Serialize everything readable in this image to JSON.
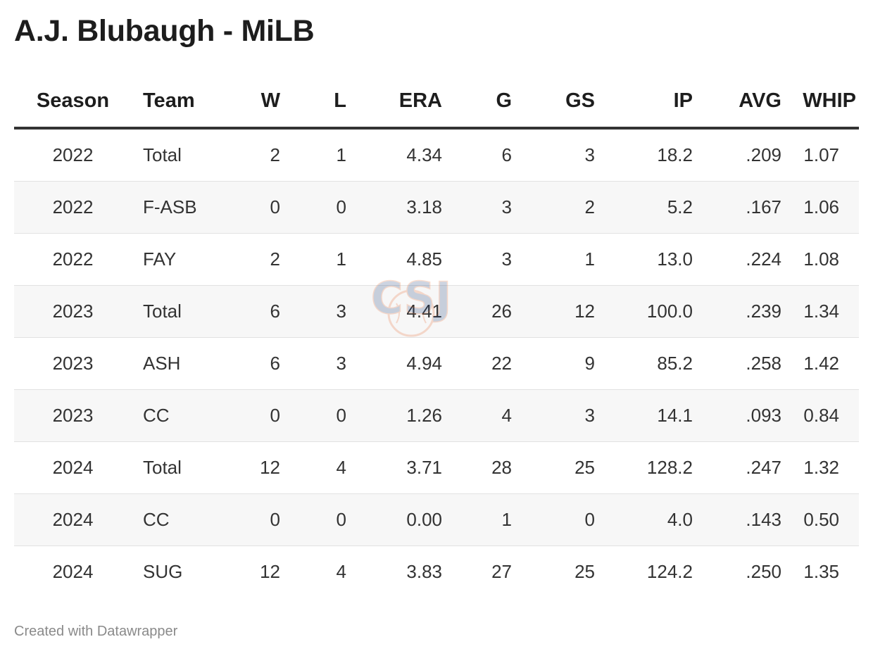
{
  "title": "A.J. Blubaugh - MiLB",
  "footer": "Created with Datawrapper",
  "watermark_text": "CSJ",
  "chart_data": {
    "type": "table",
    "columns": [
      "Season",
      "Team",
      "W",
      "L",
      "ERA",
      "G",
      "GS",
      "IP",
      "AVG",
      "WHIP"
    ],
    "rows": [
      [
        "2022",
        "Total",
        "2",
        "1",
        "4.34",
        "6",
        "3",
        "18.2",
        ".209",
        "1.07"
      ],
      [
        "2022",
        "F-ASB",
        "0",
        "0",
        "3.18",
        "3",
        "2",
        "5.2",
        ".167",
        "1.06"
      ],
      [
        "2022",
        "FAY",
        "2",
        "1",
        "4.85",
        "3",
        "1",
        "13.0",
        ".224",
        "1.08"
      ],
      [
        "2023",
        "Total",
        "6",
        "3",
        "4.41",
        "26",
        "12",
        "100.0",
        ".239",
        "1.34"
      ],
      [
        "2023",
        "ASH",
        "6",
        "3",
        "4.94",
        "22",
        "9",
        "85.2",
        ".258",
        "1.42"
      ],
      [
        "2023",
        "CC",
        "0",
        "0",
        "1.26",
        "4",
        "3",
        "14.1",
        ".093",
        "0.84"
      ],
      [
        "2024",
        "Total",
        "12",
        "4",
        "3.71",
        "28",
        "25",
        "128.2",
        ".247",
        "1.32"
      ],
      [
        "2024",
        "CC",
        "0",
        "0",
        "0.00",
        "1",
        "0",
        "4.0",
        ".143",
        "0.50"
      ],
      [
        "2024",
        "SUG",
        "12",
        "4",
        "3.83",
        "27",
        "25",
        "124.2",
        ".250",
        "1.35"
      ]
    ]
  },
  "colors": {
    "header_rule": "#333333",
    "stripe": "#f7f7f7",
    "watermark_blue": "#1f3f7a",
    "watermark_orange": "#e8672a"
  }
}
